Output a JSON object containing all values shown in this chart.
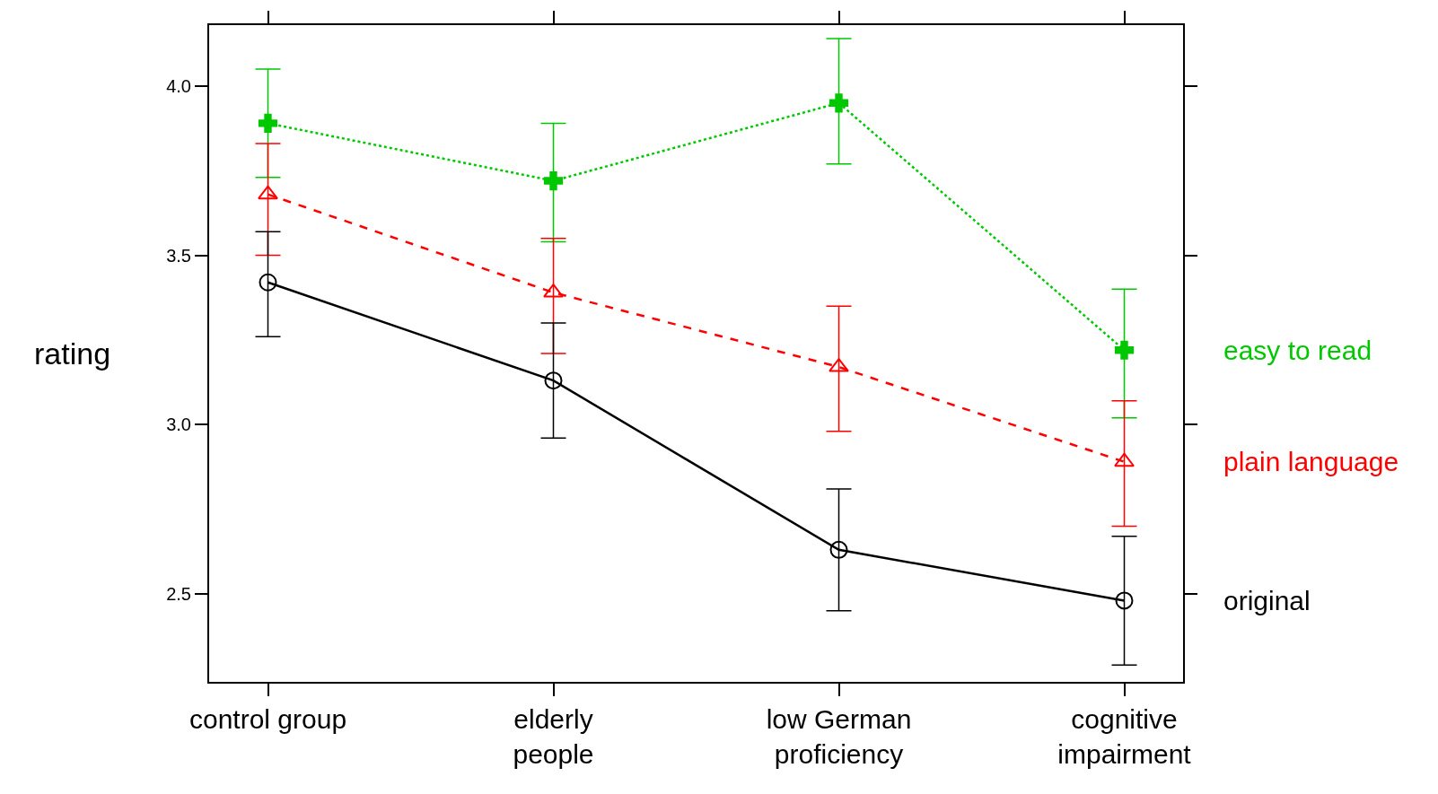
{
  "chart_data": {
    "type": "line",
    "ylabel": "rating",
    "categories": [
      "control group",
      "elderly\npeople",
      "low German\nproficiency",
      "cognitive\nimpairment"
    ],
    "series": [
      {
        "name": "easy to read",
        "color": "#00c800",
        "marker": "cross",
        "line_style": "dotted",
        "values": [
          3.89,
          3.72,
          3.95,
          3.22
        ],
        "errors": [
          [
            3.73,
            4.05
          ],
          [
            3.54,
            3.89
          ],
          [
            3.77,
            4.14
          ],
          [
            3.02,
            3.4
          ]
        ]
      },
      {
        "name": "plain language",
        "color": "#ff0000",
        "marker": "triangle",
        "line_style": "dashed",
        "values": [
          3.68,
          3.39,
          3.17,
          2.89
        ],
        "errors": [
          [
            3.5,
            3.83
          ],
          [
            3.21,
            3.55
          ],
          [
            2.98,
            3.35
          ],
          [
            2.7,
            3.07
          ]
        ]
      },
      {
        "name": "original",
        "color": "#000000",
        "marker": "circle",
        "line_style": "solid",
        "values": [
          3.42,
          3.13,
          2.63,
          2.48
        ],
        "errors": [
          [
            3.26,
            3.57
          ],
          [
            2.96,
            3.3
          ],
          [
            2.45,
            2.81
          ],
          [
            2.29,
            2.67
          ]
        ]
      }
    ],
    "ylim": [
      2.24,
      4.18
    ],
    "yticks": [
      {
        "value": 2.5,
        "label": "2.5"
      },
      {
        "value": 3.0,
        "label": "3.0"
      },
      {
        "value": 3.5,
        "label": "3.5"
      },
      {
        "value": 4.0,
        "label": "4.0"
      }
    ],
    "legend": "right"
  }
}
